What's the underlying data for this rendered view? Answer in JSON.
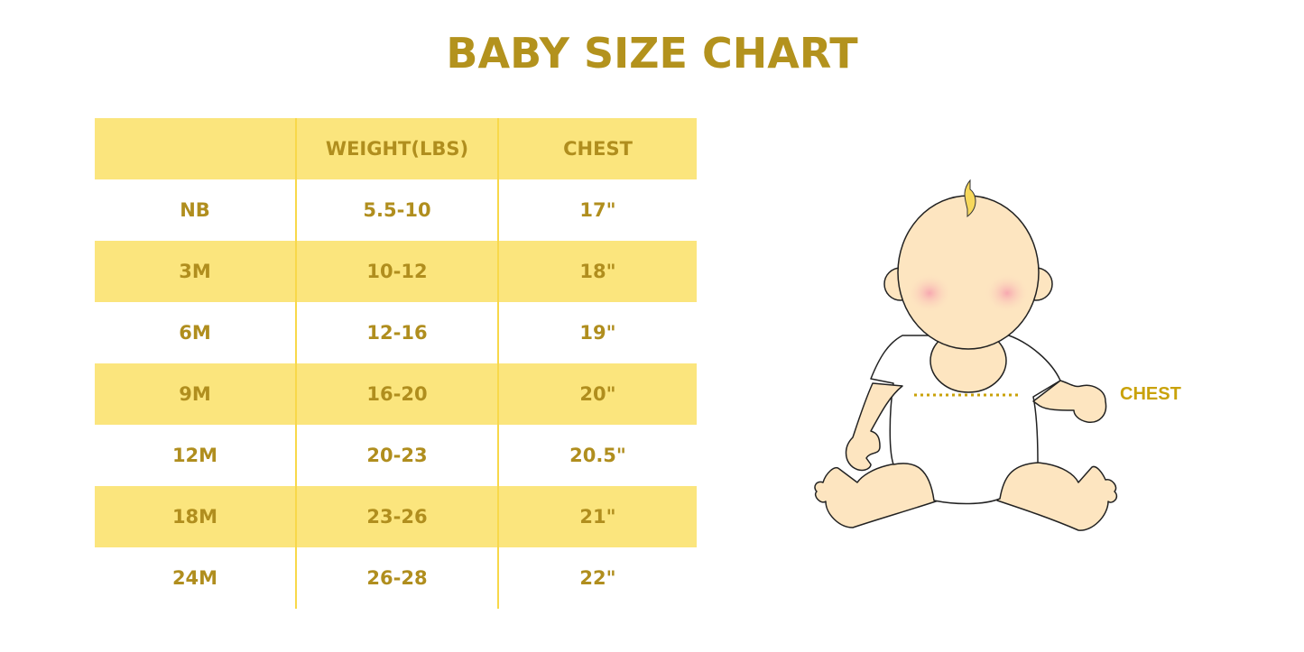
{
  "title": "BABY SIZE CHART",
  "table": {
    "headers": [
      "",
      "WEIGHT(LBS)",
      "CHEST"
    ],
    "rows": [
      [
        "NB",
        "5.5-10",
        "17\""
      ],
      [
        "3M",
        "10-12",
        "18\""
      ],
      [
        "6M",
        "12-16",
        "19\""
      ],
      [
        "9M",
        "16-20",
        "20\""
      ],
      [
        "12M",
        "20-23",
        "20.5\""
      ],
      [
        "18M",
        "23-26",
        "21\""
      ],
      [
        "24M",
        "26-28",
        "22\""
      ]
    ]
  },
  "illustration": {
    "chest_label": "CHEST"
  },
  "colors": {
    "accent_text": "#b08e1e",
    "row_highlight": "#fbe57d",
    "skin": "#fde5c0"
  }
}
